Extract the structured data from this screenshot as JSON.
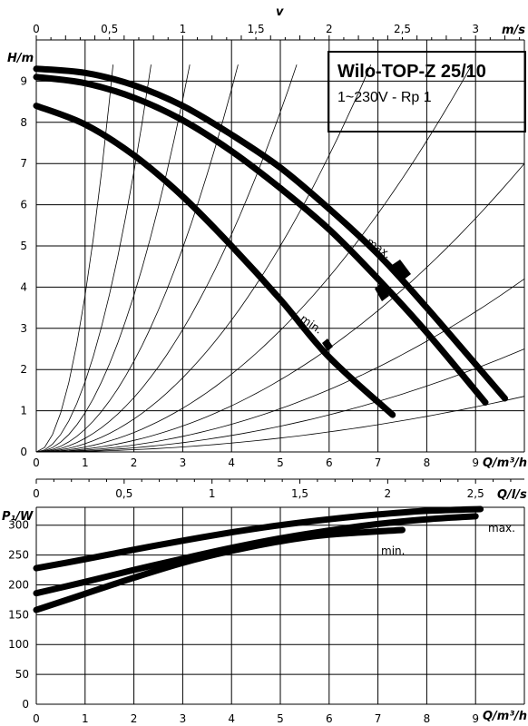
{
  "header": {
    "title": "Wilo-TOP-Z 25/10",
    "subtitle": "1~230V - Rp 1"
  },
  "chart_data": [
    {
      "type": "line",
      "id": "head",
      "xlabel": "Q/m³/h",
      "ylabel": "H/m",
      "xlim": [
        0,
        10
      ],
      "ylim": [
        0,
        10
      ],
      "x_ticks": [
        "0",
        "1",
        "2",
        "3",
        "4",
        "5",
        "6",
        "7",
        "8",
        "9"
      ],
      "y_ticks": [
        "0",
        "1",
        "2",
        "3",
        "4",
        "5",
        "6",
        "7",
        "8",
        "9"
      ],
      "top_axis": {
        "label": "v",
        "unit": "m/s",
        "ticks": [
          "0",
          "0,5",
          "1",
          "1,5",
          "2",
          "2,5",
          "3"
        ],
        "tick_positions_q": [
          0,
          1.5,
          3.0,
          4.5,
          6.0,
          7.5,
          9.0
        ]
      },
      "annotations": {
        "max": "max.",
        "min": "min."
      },
      "series": [
        {
          "name": "max.",
          "x": [
            0,
            1,
            2,
            3,
            4,
            5,
            6,
            7,
            8,
            9.6
          ],
          "y": [
            9.3,
            9.2,
            8.9,
            8.4,
            7.7,
            6.9,
            5.9,
            4.8,
            3.5,
            1.3
          ]
        },
        {
          "name": "",
          "x": [
            0,
            1,
            2,
            3,
            4,
            5,
            6,
            7,
            8,
            9.2
          ],
          "y": [
            9.1,
            8.95,
            8.6,
            8.05,
            7.3,
            6.4,
            5.4,
            4.2,
            2.9,
            1.2
          ]
        },
        {
          "name": "min.",
          "x": [
            0,
            1,
            2,
            3,
            4,
            5,
            6,
            7.3
          ],
          "y": [
            8.4,
            7.95,
            7.2,
            6.2,
            5.0,
            3.7,
            2.3,
            0.9
          ]
        }
      ],
      "system_curves_k": [
        3.8,
        1.7,
        0.95,
        0.55,
        0.33,
        0.2,
        0.118,
        0.07,
        0.042,
        0.025,
        0.0135
      ]
    },
    {
      "type": "line",
      "id": "power",
      "xlabel": "Q/m³/h",
      "ylabel": "P₁/W",
      "xlim": [
        0,
        10
      ],
      "ylim": [
        0,
        330
      ],
      "x_ticks": [
        "0",
        "1",
        "2",
        "3",
        "4",
        "5",
        "6",
        "7",
        "8",
        "9"
      ],
      "y_ticks": [
        "0",
        "50",
        "100",
        "150",
        "200",
        "250",
        "300"
      ],
      "top_axis": {
        "unit": "Q/l/s",
        "ticks": [
          "0",
          "0,5",
          "1",
          "1,5",
          "2",
          "2,5"
        ],
        "tick_positions_q": [
          0,
          1.8,
          3.6,
          5.4,
          7.2,
          9.0
        ]
      },
      "annotations": {
        "max": "max.",
        "min": "min."
      },
      "series": [
        {
          "name": "max.",
          "x": [
            0,
            1,
            2,
            3,
            4,
            5,
            6,
            7,
            8,
            9.1
          ],
          "y": [
            228,
            243,
            259,
            274,
            288,
            300,
            310,
            318,
            324,
            327
          ]
        },
        {
          "name": "",
          "x": [
            0,
            1,
            2,
            3,
            4,
            5,
            6,
            7,
            8,
            9.0
          ],
          "y": [
            186,
            205,
            225,
            244,
            262,
            278,
            291,
            302,
            310,
            315
          ]
        },
        {
          "name": "min.",
          "x": [
            0,
            1,
            2,
            3,
            4,
            5,
            6,
            7.5
          ],
          "y": [
            158,
            185,
            212,
            237,
            257,
            273,
            284,
            292
          ]
        }
      ]
    }
  ]
}
